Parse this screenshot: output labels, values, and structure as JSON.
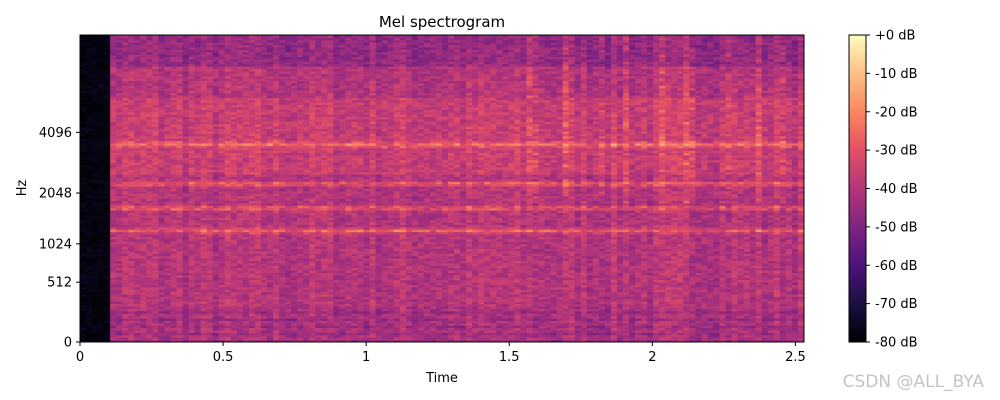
{
  "chart_data": {
    "type": "heatmap",
    "title": "Mel spectrogram",
    "xlabel": "Time",
    "ylabel": "Hz",
    "xlim": [
      0,
      2.53
    ],
    "x_ticks": [
      0,
      0.5,
      1,
      1.5,
      2,
      2.5
    ],
    "x_tick_labels": [
      "0",
      "0.5",
      "1",
      "1.5",
      "2",
      "2.5"
    ],
    "y_scale": "mel",
    "ylim": [
      0,
      11025
    ],
    "y_ticks": [
      0,
      512,
      1024,
      2048,
      4096
    ],
    "y_tick_labels": [
      "0",
      "512",
      "1024",
      "2048",
      "4096"
    ],
    "colormap": "magma",
    "colorbar": {
      "range": [
        -80,
        0
      ],
      "ticks": [
        0,
        -10,
        -20,
        -30,
        -40,
        -50,
        -60,
        -70,
        -80
      ],
      "tick_labels": [
        "+0 dB",
        "-10 dB",
        "-20 dB",
        "-30 dB",
        "-40 dB",
        "-50 dB",
        "-60 dB",
        "-70 dB",
        "-80 dB"
      ]
    },
    "silence_end_time": 0.1,
    "value_range_db": [
      -80,
      0
    ],
    "bright_bands_hz": [
      1250,
      1700,
      2300,
      3600
    ],
    "transient_times": [
      1.57,
      1.6,
      1.7,
      1.82,
      1.9,
      2.03,
      2.13,
      2.27,
      2.38,
      2.45
    ]
  },
  "watermark": "CSDN @ALL_BYA"
}
